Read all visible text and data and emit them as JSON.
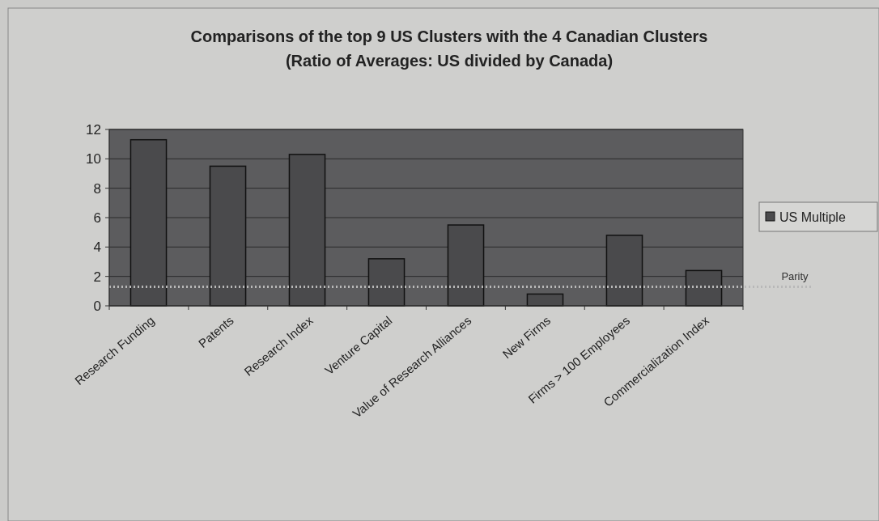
{
  "chart_data": {
    "type": "bar",
    "title": "Comparisons of the top 9 US Clusters with the 4 Canadian Clusters\n(Ratio of Averages: US divided by Canada)",
    "categories": [
      "Research Funding",
      "Patents",
      "Research Index",
      "Venture Capital",
      "Value of Research Alliances",
      "New Firms",
      "Firms > 100 Employees",
      "Commercialization Index"
    ],
    "series": [
      {
        "name": "US Multiple",
        "color": "#4a4a4c",
        "values": [
          11.3,
          9.5,
          10.3,
          3.2,
          5.5,
          0.8,
          4.8,
          2.4
        ]
      }
    ],
    "ylim": [
      0,
      12
    ],
    "yticks": [
      0,
      2,
      4,
      6,
      8,
      10,
      12
    ],
    "grid": "y",
    "legend": "right",
    "ref_lines": [
      {
        "axis": "y",
        "value": 1.3,
        "label": "Parity",
        "color": "#b8b8b8",
        "line_style": "dotted"
      }
    ]
  }
}
